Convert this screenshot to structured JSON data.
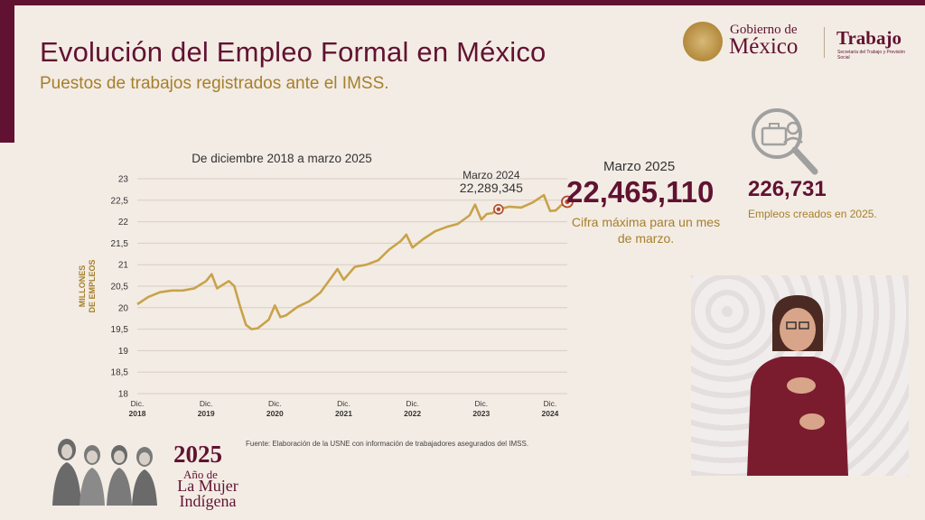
{
  "header": {
    "title": "Evolución del Empleo Formal en México",
    "subtitle": "Puestos de trabajos registrados ante el IMSS."
  },
  "logos": {
    "gobierno_line1": "Gobierno de",
    "gobierno_line2": "México",
    "trabajo": "Trabajo",
    "trabajo_sub": "Secretaría del Trabajo y Previsión Social"
  },
  "chart_data": {
    "type": "line",
    "title": "De diciembre 2018 a marzo 2025",
    "ylabel_line1": "MILLONES",
    "ylabel_line2": "DE EMPLEOS",
    "ylim": [
      18,
      23
    ],
    "yticks": [
      "18",
      "18,5",
      "19",
      "19,5",
      "20",
      "20,5",
      "21",
      "21,5",
      "22",
      "22,5",
      "23"
    ],
    "xlim": [
      2018.92,
      2025.17
    ],
    "xticks": [
      {
        "x": 2018.92,
        "l1": "Dic.",
        "l2": "2018"
      },
      {
        "x": 2019.92,
        "l1": "Dic.",
        "l2": "2019"
      },
      {
        "x": 2020.92,
        "l1": "Dic.",
        "l2": "2020"
      },
      {
        "x": 2021.92,
        "l1": "Dic.",
        "l2": "2021"
      },
      {
        "x": 2022.92,
        "l1": "Dic.",
        "l2": "2022"
      },
      {
        "x": 2023.92,
        "l1": "Dic.",
        "l2": "2023"
      },
      {
        "x": 2024.92,
        "l1": "Dic.",
        "l2": "2024"
      }
    ],
    "grid": true,
    "color": "#c9a24a",
    "series": [
      {
        "points": [
          [
            2018.92,
            20.08
          ],
          [
            2019.08,
            20.25
          ],
          [
            2019.25,
            20.36
          ],
          [
            2019.42,
            20.4
          ],
          [
            2019.58,
            20.4
          ],
          [
            2019.75,
            20.45
          ],
          [
            2019.92,
            20.62
          ],
          [
            2020.0,
            20.78
          ],
          [
            2020.08,
            20.45
          ],
          [
            2020.25,
            20.62
          ],
          [
            2020.33,
            20.5
          ],
          [
            2020.42,
            20.0
          ],
          [
            2020.5,
            19.6
          ],
          [
            2020.58,
            19.5
          ],
          [
            2020.67,
            19.52
          ],
          [
            2020.83,
            19.72
          ],
          [
            2020.92,
            20.05
          ],
          [
            2021.0,
            19.78
          ],
          [
            2021.08,
            19.82
          ],
          [
            2021.25,
            20.02
          ],
          [
            2021.42,
            20.15
          ],
          [
            2021.58,
            20.35
          ],
          [
            2021.75,
            20.72
          ],
          [
            2021.83,
            20.9
          ],
          [
            2021.92,
            20.65
          ],
          [
            2022.08,
            20.95
          ],
          [
            2022.25,
            21.0
          ],
          [
            2022.42,
            21.1
          ],
          [
            2022.58,
            21.35
          ],
          [
            2022.75,
            21.55
          ],
          [
            2022.83,
            21.7
          ],
          [
            2022.92,
            21.4
          ],
          [
            2023.08,
            21.6
          ],
          [
            2023.25,
            21.78
          ],
          [
            2023.42,
            21.88
          ],
          [
            2023.58,
            21.95
          ],
          [
            2023.75,
            22.15
          ],
          [
            2023.83,
            22.4
          ],
          [
            2023.92,
            22.05
          ],
          [
            2024.0,
            22.18
          ],
          [
            2024.08,
            22.2
          ],
          [
            2024.17,
            22.289
          ],
          [
            2024.33,
            22.35
          ],
          [
            2024.5,
            22.33
          ],
          [
            2024.67,
            22.45
          ],
          [
            2024.83,
            22.62
          ],
          [
            2024.92,
            22.25
          ],
          [
            2025.0,
            22.26
          ],
          [
            2025.08,
            22.38
          ],
          [
            2025.17,
            22.465
          ]
        ]
      }
    ],
    "annotation": {
      "x": 2024.17,
      "y": 22.289,
      "label": "Marzo 2024",
      "value": "22,289,345"
    },
    "highlight": {
      "x": 2025.17,
      "y": 22.465
    }
  },
  "stats": {
    "march_label": "Marzo 2025",
    "march_value": "22,465,110",
    "march_desc": "Cifra máxima para un mes de marzo.",
    "created_value": "226,731",
    "created_desc": "Empleos creados en 2025."
  },
  "source": "Fuente: Elaboración de la USNE con información de trabajadores asegurados del IMSS.",
  "badge": {
    "year": "2025",
    "line1": "Año de",
    "line2": "La Mujer Indígena"
  }
}
